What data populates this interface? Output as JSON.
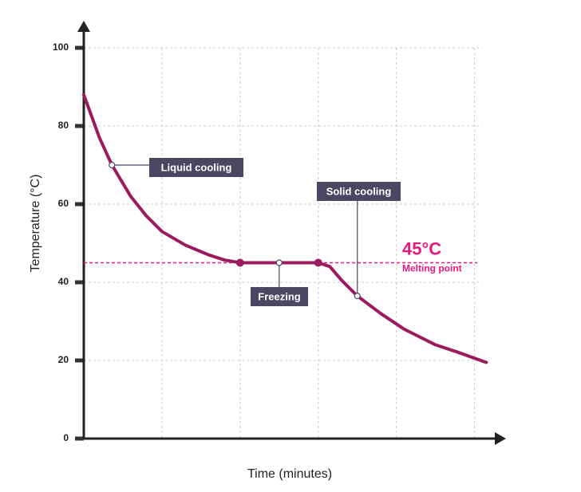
{
  "chart_data": {
    "type": "line",
    "x_label": "Time (minutes)",
    "y_label": "Temperature (°C)",
    "xlim": [
      0,
      5.3
    ],
    "xticks": [
      1,
      2,
      3,
      4,
      5
    ],
    "ylim": [
      0,
      100
    ],
    "yticks": [
      0,
      20,
      40,
      60,
      80,
      100
    ],
    "grid": true,
    "series": [
      {
        "color": "#9b1b5e",
        "x": [
          0,
          0.2,
          0.36,
          0.6,
          0.8,
          1.0,
          1.3,
          1.6,
          1.8,
          2.0,
          3.0,
          3.15,
          3.3,
          3.5,
          3.8,
          4.1,
          4.5,
          4.8,
          5.15
        ],
        "values": [
          88,
          77,
          70,
          62,
          57,
          53,
          49.5,
          47,
          45.7,
          45,
          45,
          44,
          40.5,
          36.5,
          32,
          28,
          24,
          22,
          19.5
        ]
      }
    ],
    "key_points": {
      "x": [
        2.0,
        3.0
      ],
      "values": [
        45,
        45
      ]
    },
    "annotations": [
      {
        "text": "Liquid cooling",
        "x": 0.36,
        "y": 70
      },
      {
        "text": "Freezing",
        "x": 2.5,
        "y": 45
      },
      {
        "text": "Solid cooling",
        "x": 3.5,
        "y": 36.5
      }
    ],
    "reference_line": {
      "value": 45,
      "label": "45°C",
      "sublabel": "Melting point",
      "color": "#e8197d"
    }
  }
}
